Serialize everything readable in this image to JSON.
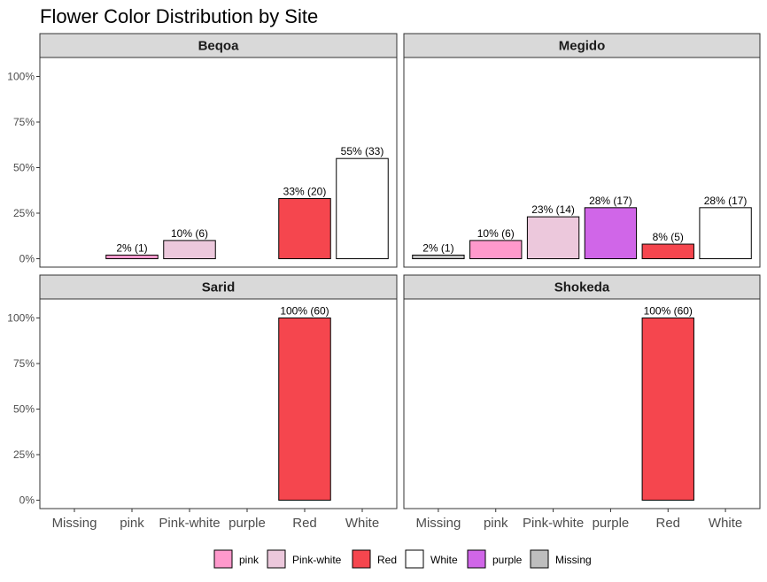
{
  "chart_data": {
    "type": "bar",
    "title": "Flower Color Distribution by Site",
    "xlabel": "",
    "ylabel": "",
    "ylim": [
      0,
      1.1
    ],
    "yticks": [
      0,
      0.25,
      0.5,
      0.75,
      1.0
    ],
    "ytick_labels": [
      "0%",
      "25%",
      "50%",
      "75%",
      "100%"
    ],
    "categories": [
      "Missing",
      "pink",
      "Pink-white",
      "purple",
      "Red",
      "White"
    ],
    "colors": {
      "Missing": "#bebebe",
      "pink": "#ff99cc",
      "Pink-white": "#ecc8dc",
      "purple": "#d066e8",
      "Red": "#f5464e",
      "White": "#ffffff"
    },
    "facets": [
      {
        "name": "Beqoa",
        "bars": [
          {
            "category": "pink",
            "value": 0.02,
            "label": "2% (1)"
          },
          {
            "category": "Pink-white",
            "value": 0.1,
            "label": "10% (6)"
          },
          {
            "category": "Red",
            "value": 0.33,
            "label": "33% (20)"
          },
          {
            "category": "White",
            "value": 0.55,
            "label": "55% (33)"
          }
        ]
      },
      {
        "name": "Megido",
        "bars": [
          {
            "category": "Missing",
            "value": 0.02,
            "label": "2% (1)"
          },
          {
            "category": "pink",
            "value": 0.1,
            "label": "10% (6)"
          },
          {
            "category": "Pink-white",
            "value": 0.23,
            "label": "23% (14)"
          },
          {
            "category": "purple",
            "value": 0.28,
            "label": "28% (17)"
          },
          {
            "category": "Red",
            "value": 0.08,
            "label": "8% (5)"
          },
          {
            "category": "White",
            "value": 0.28,
            "label": "28% (17)"
          }
        ]
      },
      {
        "name": "Sarid",
        "bars": [
          {
            "category": "Red",
            "value": 1.0,
            "label": "100% (60)"
          }
        ]
      },
      {
        "name": "Shokeda",
        "bars": [
          {
            "category": "Red",
            "value": 1.0,
            "label": "100% (60)"
          }
        ]
      }
    ],
    "legend": {
      "position": "bottom",
      "entries": [
        "pink",
        "Pink-white",
        "Red",
        "White",
        "purple",
        "Missing"
      ]
    },
    "grid": false
  }
}
